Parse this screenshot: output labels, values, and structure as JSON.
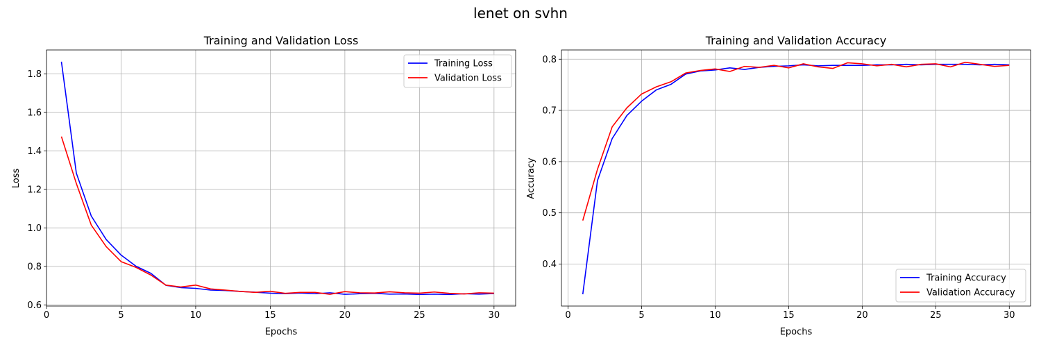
{
  "figure": {
    "title": "lenet on svhn"
  },
  "chart_data": [
    {
      "type": "line",
      "title": "Training and Validation Loss",
      "xlabel": "Epochs",
      "ylabel": "Loss",
      "xlim": [
        0,
        31.45
      ],
      "ylim": [
        0.594,
        1.925
      ],
      "xticks": [
        0,
        5,
        10,
        15,
        20,
        25,
        30
      ],
      "xtick_labels": [
        "0",
        "5",
        "10",
        "15",
        "20",
        "25",
        "30"
      ],
      "yticks": [
        0.6,
        0.8,
        1.0,
        1.2,
        1.4,
        1.6,
        1.8
      ],
      "ytick_labels": [
        "0.6",
        "0.8",
        "1.0",
        "1.2",
        "1.4",
        "1.6",
        "1.8"
      ],
      "grid": true,
      "legend_position": "top-right",
      "x": [
        1,
        2,
        3,
        4,
        5,
        6,
        7,
        8,
        9,
        10,
        11,
        12,
        13,
        14,
        15,
        16,
        17,
        18,
        19,
        20,
        21,
        22,
        23,
        24,
        25,
        26,
        27,
        28,
        29,
        30
      ],
      "series": [
        {
          "name": "Training Loss",
          "color": "#0000ff",
          "values": [
            1.864,
            1.285,
            1.062,
            0.94,
            0.859,
            0.801,
            0.764,
            0.702,
            0.69,
            0.686,
            0.677,
            0.675,
            0.67,
            0.666,
            0.661,
            0.658,
            0.662,
            0.658,
            0.663,
            0.655,
            0.658,
            0.66,
            0.656,
            0.657,
            0.654,
            0.656,
            0.654,
            0.658,
            0.656,
            0.659
          ]
        },
        {
          "name": "Validation Loss",
          "color": "#ff0000",
          "values": [
            1.475,
            1.231,
            1.015,
            0.903,
            0.825,
            0.795,
            0.755,
            0.703,
            0.693,
            0.703,
            0.683,
            0.677,
            0.67,
            0.665,
            0.671,
            0.66,
            0.665,
            0.665,
            0.655,
            0.669,
            0.663,
            0.662,
            0.668,
            0.663,
            0.661,
            0.667,
            0.66,
            0.657,
            0.663,
            0.661
          ]
        }
      ]
    },
    {
      "type": "line",
      "title": "Training and Validation Accuracy",
      "xlabel": "Epochs",
      "ylabel": "Accuracy",
      "xlim": [
        -0.45,
        31.45
      ],
      "ylim": [
        0.318,
        0.818
      ],
      "xticks": [
        0,
        5,
        10,
        15,
        20,
        25,
        30
      ],
      "xtick_labels": [
        "0",
        "5",
        "10",
        "15",
        "20",
        "25",
        "30"
      ],
      "yticks": [
        0.4,
        0.5,
        0.6,
        0.7,
        0.8
      ],
      "ytick_labels": [
        "0.4",
        "0.5",
        "0.6",
        "0.7",
        "0.8"
      ],
      "grid": true,
      "legend_position": "bottom-right",
      "x": [
        1,
        2,
        3,
        4,
        5,
        6,
        7,
        8,
        9,
        10,
        11,
        12,
        13,
        14,
        15,
        16,
        17,
        18,
        19,
        20,
        21,
        22,
        23,
        24,
        25,
        26,
        27,
        28,
        29,
        30
      ],
      "series": [
        {
          "name": "Training Accuracy",
          "color": "#0000ff",
          "values": [
            0.341,
            0.563,
            0.645,
            0.69,
            0.718,
            0.74,
            0.751,
            0.771,
            0.777,
            0.779,
            0.783,
            0.78,
            0.784,
            0.786,
            0.787,
            0.789,
            0.787,
            0.788,
            0.788,
            0.788,
            0.789,
            0.789,
            0.79,
            0.789,
            0.79,
            0.79,
            0.79,
            0.789,
            0.79,
            0.789
          ]
        },
        {
          "name": "Validation Accuracy",
          "color": "#ff0000",
          "values": [
            0.485,
            0.585,
            0.668,
            0.705,
            0.732,
            0.746,
            0.756,
            0.773,
            0.778,
            0.781,
            0.776,
            0.786,
            0.784,
            0.788,
            0.783,
            0.791,
            0.785,
            0.782,
            0.793,
            0.791,
            0.787,
            0.79,
            0.785,
            0.79,
            0.791,
            0.785,
            0.794,
            0.79,
            0.786,
            0.788
          ]
        }
      ]
    }
  ]
}
